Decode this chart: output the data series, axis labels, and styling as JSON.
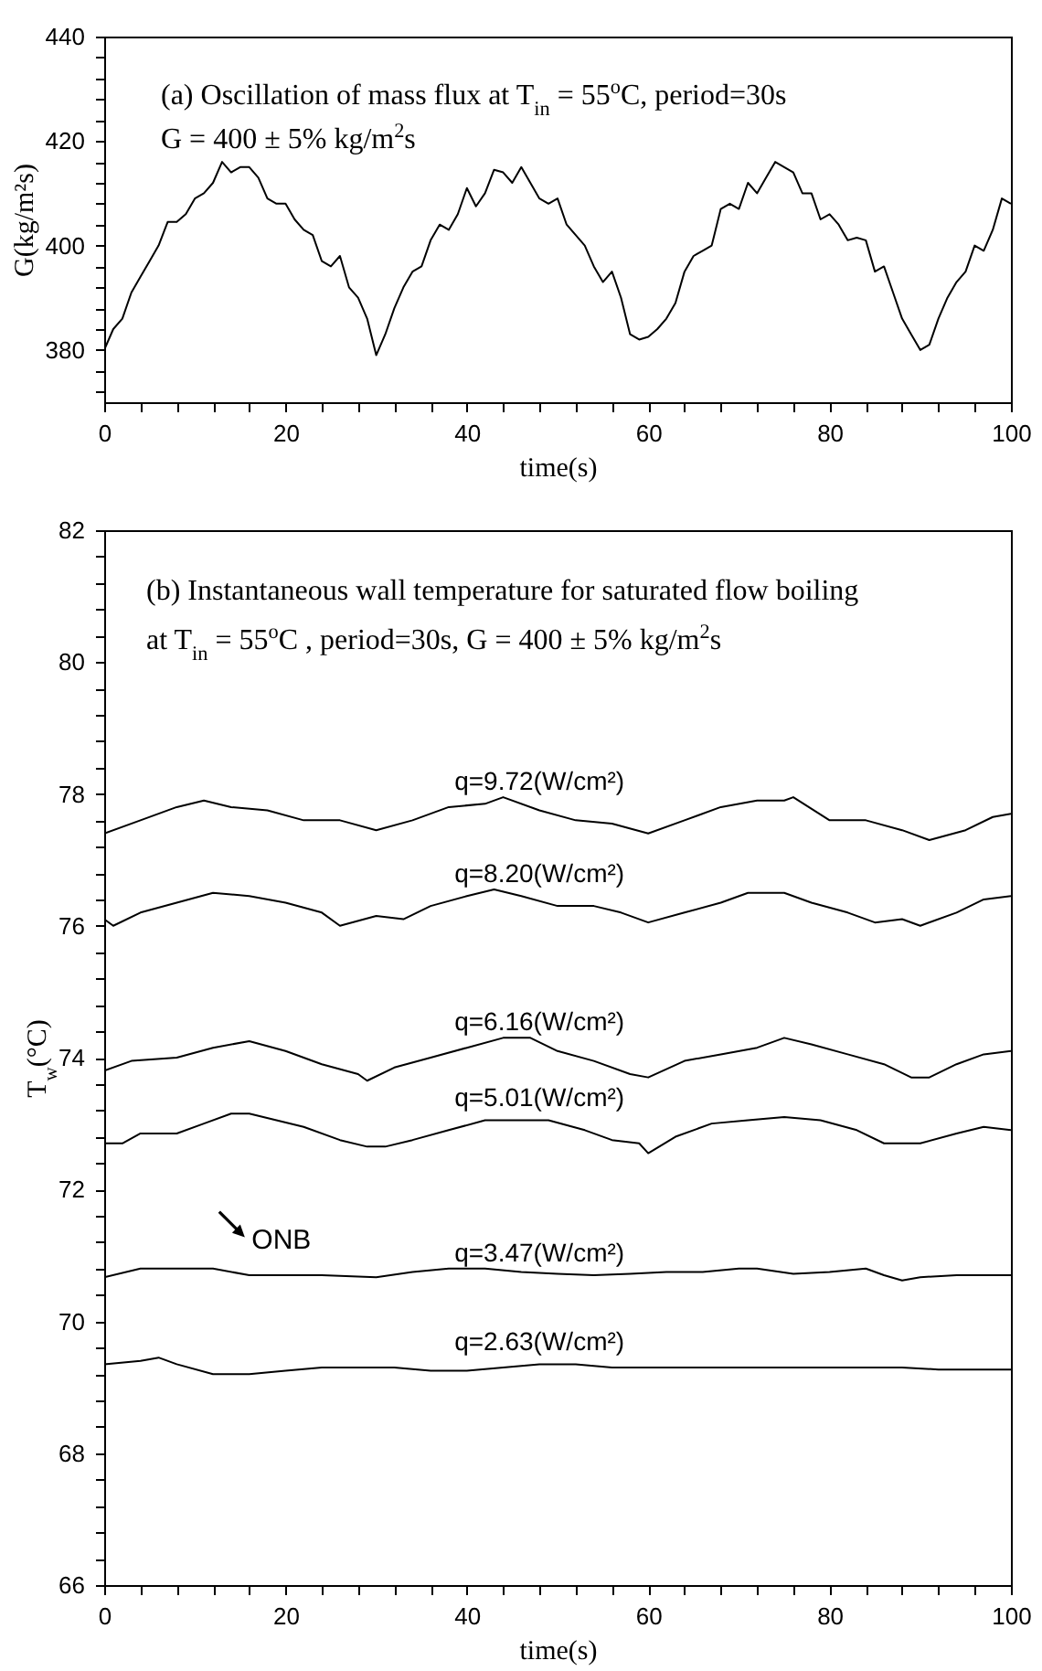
{
  "chart_data": [
    {
      "type": "line",
      "xlabel": "time(s)",
      "ylabel": "G(kg/m²s)",
      "color": "#000000",
      "annotations": [
        "(a) Oscillation of mass flux at T$_{in}$ = 55$^{o}$C, period=30s",
        "G = 400 ± 5% kg/m$^{2}$s"
      ],
      "x": [
        0,
        1,
        2,
        3,
        4,
        5,
        6,
        7,
        8,
        9,
        10,
        11,
        12,
        13,
        14,
        15,
        16,
        17,
        18,
        19,
        20,
        21,
        22,
        23,
        24,
        25,
        26,
        27,
        28,
        29,
        30,
        31,
        32,
        33,
        34,
        35,
        36,
        37,
        38,
        39,
        40,
        41,
        42,
        43,
        44,
        45,
        46,
        47,
        48,
        49,
        50,
        51,
        52,
        53,
        54,
        55,
        56,
        57,
        58,
        59,
        60,
        61,
        62,
        63,
        64,
        65,
        66,
        67,
        68,
        69,
        70,
        71,
        72,
        73,
        74,
        75,
        76,
        77,
        78,
        79,
        80,
        81,
        82,
        83,
        84,
        85,
        86,
        87,
        88,
        89,
        90,
        91,
        92,
        93,
        94,
        95,
        96,
        97,
        98,
        99,
        100
      ],
      "values": [
        380,
        384,
        386,
        391,
        394,
        397,
        400,
        404.5,
        404.5,
        406,
        409,
        410,
        412,
        416,
        414,
        415,
        415,
        413,
        409,
        408,
        408,
        405,
        403,
        402,
        397,
        396,
        398,
        392,
        390,
        386,
        379,
        383,
        388,
        392,
        395,
        396,
        401,
        404,
        403,
        406,
        411,
        407.5,
        410,
        414.5,
        414,
        412,
        415,
        412,
        409,
        408,
        409,
        404,
        402,
        400,
        396,
        393,
        395,
        390,
        383,
        382,
        382.5,
        384,
        386,
        389,
        395,
        398,
        399,
        400,
        407,
        408,
        407,
        412,
        410,
        413,
        416,
        415,
        414,
        410,
        410,
        405,
        406,
        404,
        401,
        401.5,
        401,
        395,
        396,
        391,
        386,
        383,
        380,
        381,
        386,
        390,
        393,
        395,
        400,
        399,
        403,
        409,
        408
      ],
      "xlim": [
        0,
        100
      ],
      "ylim": [
        370,
        440
      ],
      "xticks": [
        0,
        {
          "value": 4,
          "label": null
        },
        {
          "value": 8,
          "label": null
        },
        {
          "value": 12,
          "label": null
        },
        {
          "value": 16,
          "label": null
        },
        20,
        {
          "value": 24,
          "label": null
        },
        {
          "value": 28,
          "label": null
        },
        {
          "value": 32,
          "label": null
        },
        {
          "value": 36,
          "label": null
        },
        40,
        {
          "value": 44,
          "label": null
        },
        {
          "value": 48,
          "label": null
        },
        {
          "value": 52,
          "label": null
        },
        {
          "value": 56,
          "label": null
        },
        60,
        {
          "value": 64,
          "label": null
        },
        {
          "value": 68,
          "label": null
        },
        {
          "value": 72,
          "label": null
        },
        {
          "value": 76,
          "label": null
        },
        80,
        {
          "value": 84,
          "label": null
        },
        {
          "value": 88,
          "label": null
        },
        {
          "value": 92,
          "label": null
        },
        {
          "value": 96,
          "label": null
        },
        100
      ],
      "yticks": [
        {
          "value": 372,
          "label": null
        },
        {
          "value": 376,
          "label": null
        },
        380,
        {
          "value": 384,
          "label": null
        },
        {
          "value": 388,
          "label": null
        },
        {
          "value": 392,
          "label": null
        },
        {
          "value": 396,
          "label": null
        },
        400,
        {
          "value": 404,
          "label": null
        },
        {
          "value": 408,
          "label": null
        },
        {
          "value": 412,
          "label": null
        },
        {
          "value": 416,
          "label": null
        },
        420,
        {
          "value": 424,
          "label": null
        },
        {
          "value": 428,
          "label": null
        },
        {
          "value": 432,
          "label": null
        },
        {
          "value": 436,
          "label": null
        },
        440
      ]
    },
    {
      "type": "line",
      "xlabel": "time(s)",
      "ylabel": "T$_{w}$(°C)",
      "annotations": [
        "(b) Instantaneous wall temperature for saturated flow boiling",
        "at T$_{in}$ = 55$^{o}$C , period=30s, G = 400 ± 5% kg/m$^{2}$s",
        {
          "text": "ONB",
          "x": 27,
          "y": 70.72
        }
      ],
      "series": [
        {
          "name": "q=9.72(W/cm²)",
          "color": "#000000",
          "x": [
            0,
            4,
            8,
            11,
            14,
            18,
            22,
            26,
            30,
            34,
            38,
            42,
            44,
            48,
            52,
            56,
            60,
            64,
            68,
            72,
            75,
            76,
            80,
            84,
            88,
            91,
            95,
            98,
            100
          ],
          "values": [
            77.4,
            77.6,
            77.8,
            77.9,
            77.8,
            77.75,
            77.6,
            77.6,
            77.45,
            77.6,
            77.8,
            77.85,
            77.95,
            77.75,
            77.6,
            77.55,
            77.4,
            77.6,
            77.8,
            77.9,
            77.9,
            77.95,
            77.6,
            77.6,
            77.45,
            77.3,
            77.45,
            77.65,
            77.7
          ]
        },
        {
          "name": "q=8.20(W/cm²)",
          "color": "#000000",
          "x": [
            0,
            1,
            4,
            8,
            12,
            16,
            20,
            24,
            26,
            30,
            33,
            36,
            40,
            43,
            46,
            50,
            54,
            57,
            60,
            64,
            68,
            71,
            75,
            78,
            82,
            85,
            88,
            90,
            94,
            97,
            100
          ],
          "values": [
            76.1,
            76.0,
            76.2,
            76.35,
            76.5,
            76.45,
            76.35,
            76.2,
            76.0,
            76.15,
            76.1,
            76.3,
            76.45,
            76.55,
            76.45,
            76.3,
            76.3,
            76.2,
            76.05,
            76.2,
            76.35,
            76.5,
            76.5,
            76.35,
            76.2,
            76.05,
            76.1,
            76.0,
            76.2,
            76.4,
            76.45
          ]
        },
        {
          "name": "q=6.16(W/cm²)",
          "color": "#000000",
          "x": [
            0,
            3,
            8,
            12,
            16,
            20,
            24,
            28,
            29,
            32,
            36,
            40,
            44,
            47,
            50,
            54,
            58,
            60,
            64,
            68,
            72,
            75,
            78,
            82,
            86,
            89,
            91,
            94,
            97,
            100
          ],
          "values": [
            73.8,
            73.95,
            74.0,
            74.15,
            74.25,
            74.1,
            73.9,
            73.75,
            73.65,
            73.85,
            74.0,
            74.15,
            74.3,
            74.3,
            74.1,
            73.95,
            73.75,
            73.7,
            73.95,
            74.05,
            74.15,
            74.3,
            74.2,
            74.05,
            73.9,
            73.7,
            73.7,
            73.9,
            74.05,
            74.1
          ]
        },
        {
          "name": "q=5.01(W/cm²)",
          "color": "#000000",
          "x": [
            0,
            2,
            4,
            8,
            11,
            14,
            16,
            19,
            22,
            26,
            29,
            31,
            34,
            38,
            42,
            46,
            49,
            53,
            56,
            59,
            60,
            63,
            67,
            71,
            75,
            79,
            83,
            86,
            90,
            94,
            97,
            100
          ],
          "values": [
            72.7,
            72.7,
            72.85,
            72.85,
            73.0,
            73.15,
            73.15,
            73.05,
            72.95,
            72.75,
            72.65,
            72.65,
            72.75,
            72.9,
            73.05,
            73.05,
            73.05,
            72.9,
            72.75,
            72.7,
            72.55,
            72.8,
            73.0,
            73.05,
            73.1,
            73.05,
            72.9,
            72.7,
            72.7,
            72.85,
            72.95,
            72.9
          ]
        },
        {
          "name": "q=3.47(W/cm²)",
          "color": "#000000",
          "x": [
            0,
            4,
            8,
            12,
            16,
            20,
            24,
            30,
            34,
            38,
            42,
            46,
            50,
            54,
            58,
            62,
            66,
            70,
            72,
            76,
            80,
            84,
            86,
            88,
            90,
            94,
            98,
            100
          ],
          "values": [
            70.67,
            70.8,
            70.8,
            70.8,
            70.7,
            70.7,
            70.7,
            70.67,
            70.75,
            70.8,
            70.8,
            70.75,
            70.72,
            70.7,
            70.72,
            70.75,
            70.75,
            70.8,
            70.8,
            70.72,
            70.75,
            70.8,
            70.7,
            70.62,
            70.67,
            70.7,
            70.7,
            70.7
          ]
        },
        {
          "name": "q=2.63(W/cm²)",
          "color": "#000000",
          "x": [
            0,
            4,
            6,
            8,
            12,
            16,
            20,
            24,
            28,
            32,
            36,
            40,
            44,
            48,
            52,
            56,
            60,
            64,
            68,
            72,
            76,
            80,
            84,
            88,
            92,
            96,
            100
          ],
          "values": [
            69.35,
            69.4,
            69.45,
            69.35,
            69.2,
            69.2,
            69.25,
            69.3,
            69.3,
            69.3,
            69.25,
            69.25,
            69.3,
            69.35,
            69.35,
            69.3,
            69.3,
            69.3,
            69.3,
            69.3,
            69.3,
            69.3,
            69.3,
            69.3,
            69.27,
            69.27,
            69.27
          ]
        }
      ],
      "xlim": [
        0,
        100
      ],
      "ylim": [
        66,
        82
      ],
      "xticks": [
        0,
        {
          "value": 4,
          "label": null
        },
        {
          "value": 8,
          "label": null
        },
        {
          "value": 12,
          "label": null
        },
        {
          "value": 16,
          "label": null
        },
        20,
        {
          "value": 24,
          "label": null
        },
        {
          "value": 28,
          "label": null
        },
        {
          "value": 32,
          "label": null
        },
        {
          "value": 36,
          "label": null
        },
        40,
        {
          "value": 44,
          "label": null
        },
        {
          "value": 48,
          "label": null
        },
        {
          "value": 52,
          "label": null
        },
        {
          "value": 56,
          "label": null
        },
        60,
        {
          "value": 64,
          "label": null
        },
        {
          "value": 68,
          "label": null
        },
        {
          "value": 72,
          "label": null
        },
        {
          "value": 76,
          "label": null
        },
        80,
        {
          "value": 84,
          "label": null
        },
        {
          "value": 88,
          "label": null
        },
        {
          "value": 92,
          "label": null
        },
        {
          "value": 96,
          "label": null
        },
        100
      ],
      "yticks": [
        66,
        {
          "value": 66.4,
          "label": null
        },
        {
          "value": 66.8,
          "label": null
        },
        {
          "value": 67.2,
          "label": null
        },
        {
          "value": 67.6,
          "label": null
        },
        68,
        {
          "value": 68.4,
          "label": null
        },
        {
          "value": 68.8,
          "label": null
        },
        {
          "value": 69.2,
          "label": null
        },
        {
          "value": 69.6,
          "label": null
        },
        70,
        {
          "value": 70.4,
          "label": null
        },
        {
          "value": 70.8,
          "label": null
        },
        {
          "value": 71.2,
          "label": null
        },
        {
          "value": 71.6,
          "label": null
        },
        72,
        {
          "value": 72.4,
          "label": null
        },
        {
          "value": 72.8,
          "label": null
        },
        {
          "value": 73.2,
          "label": null
        },
        {
          "value": 73.6,
          "label": null
        },
        74,
        {
          "value": 74.4,
          "label": null
        },
        {
          "value": 74.8,
          "label": null
        },
        {
          "value": 75.2,
          "label": null
        },
        {
          "value": 75.6,
          "label": null
        },
        76,
        {
          "value": 76.4,
          "label": null
        },
        {
          "value": 76.8,
          "label": null
        },
        {
          "value": 77.2,
          "label": null
        },
        {
          "value": 77.6,
          "label": null
        },
        78,
        {
          "value": 78.4,
          "label": null
        },
        {
          "value": 78.8,
          "label": null
        },
        {
          "value": 79.2,
          "label": null
        },
        {
          "value": 79.6,
          "label": null
        },
        80,
        {
          "value": 80.4,
          "label": null
        },
        {
          "value": 80.8,
          "label": null
        },
        {
          "value": 81.2,
          "label": null
        },
        {
          "value": 81.6,
          "label": null
        },
        82
      ]
    }
  ]
}
